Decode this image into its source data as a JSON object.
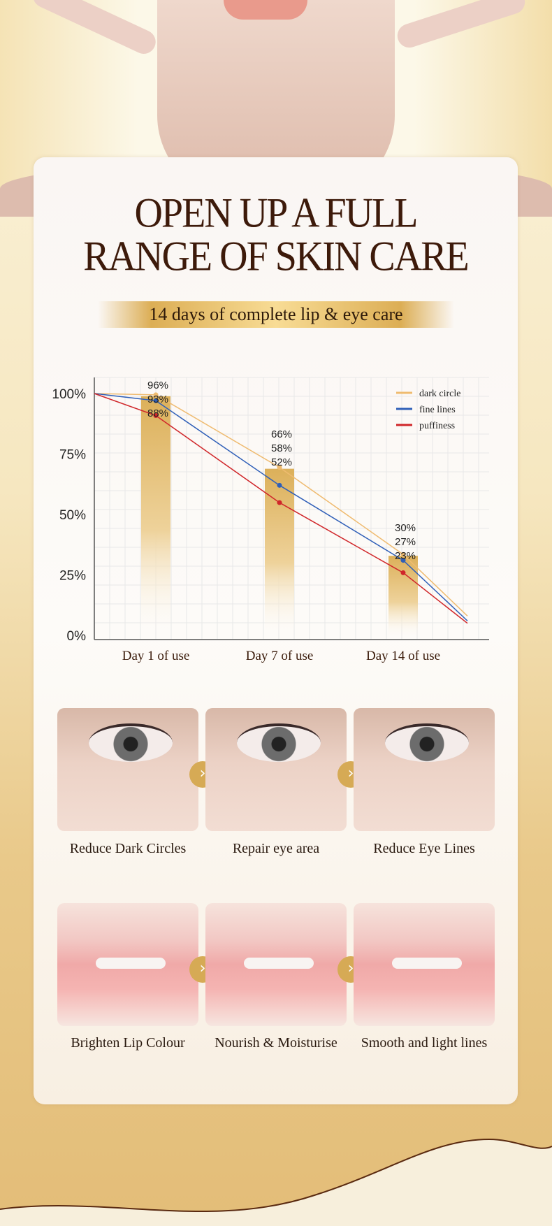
{
  "header": {
    "title_line1": "OPEN UP A FULL",
    "title_line2": "RANGE OF SKIN CARE",
    "subtitle": "14 days of complete lip & eye care"
  },
  "chart_data": {
    "type": "line",
    "categories": [
      "Day 1 of use",
      "Day 7 of use",
      "Day 14 of use"
    ],
    "yticks": [
      "0%",
      "25%",
      "50%",
      "75%",
      "100%"
    ],
    "ylim": [
      0,
      100
    ],
    "grid": true,
    "legend_placement": "top-right",
    "series": [
      {
        "name": "dark circle",
        "color": "#efbb70",
        "values": [
          96,
          66,
          30
        ]
      },
      {
        "name": "fine lines",
        "color": "#2f5fb8",
        "values": [
          93,
          58,
          27
        ]
      },
      {
        "name": "puffiness",
        "color": "#d0262a",
        "values": [
          88,
          52,
          23
        ]
      }
    ],
    "data_labels": [
      [
        "96%",
        "93%",
        "88%"
      ],
      [
        "66%",
        "58%",
        "52%"
      ],
      [
        "30%",
        "27%",
        "23%"
      ]
    ],
    "bar_color": "#dcb05a"
  },
  "eye_steps": [
    {
      "label": "Reduce Dark Circles"
    },
    {
      "label": "Repair eye area"
    },
    {
      "label": "Reduce Eye Lines"
    }
  ],
  "lip_steps": [
    {
      "label": "Brighten Lip Colour"
    },
    {
      "label": "Nourish & Moisturise"
    },
    {
      "label": "Smooth and light lines"
    }
  ],
  "arrow_icon": "›"
}
